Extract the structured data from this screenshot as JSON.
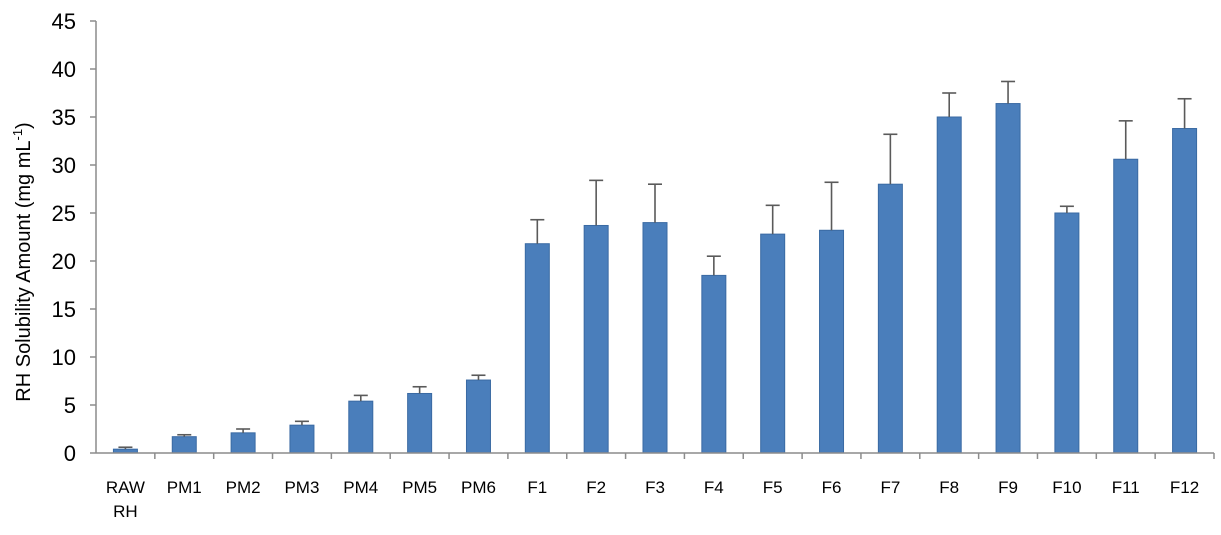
{
  "chart_data": {
    "type": "bar",
    "categories": [
      [
        "RAW",
        "RH"
      ],
      [
        "PM1"
      ],
      [
        "PM2"
      ],
      [
        "PM3"
      ],
      [
        "PM4"
      ],
      [
        "PM5"
      ],
      [
        "PM6"
      ],
      [
        "F1"
      ],
      [
        "F2"
      ],
      [
        "F3"
      ],
      [
        "F4"
      ],
      [
        "F5"
      ],
      [
        "F6"
      ],
      [
        "F7"
      ],
      [
        "F8"
      ],
      [
        "F9"
      ],
      [
        "F10"
      ],
      [
        "F11"
      ],
      [
        "F12"
      ]
    ],
    "values": [
      0.4,
      1.7,
      2.1,
      2.9,
      5.4,
      6.2,
      7.6,
      21.8,
      23.7,
      24.0,
      18.5,
      22.8,
      23.2,
      28.0,
      35.0,
      36.4,
      25.0,
      30.6,
      33.8
    ],
    "errors": [
      0.2,
      0.2,
      0.4,
      0.4,
      0.6,
      0.7,
      0.5,
      2.5,
      4.7,
      4.0,
      2.0,
      3.0,
      5.0,
      5.2,
      2.5,
      2.3,
      0.7,
      4.0,
      3.1
    ],
    "title": "",
    "xlabel": "",
    "ylabel": "RH Solubility Amount (mg mL-1)",
    "ylabel_parts": [
      "RH Solubility Amount (mg mL",
      "-1",
      ")"
    ],
    "ylim": [
      0,
      45
    ],
    "yticks": [
      0,
      5,
      10,
      15,
      20,
      25,
      30,
      35,
      40,
      45
    ],
    "grid": false,
    "legend": "none",
    "bar_color": "#4a7ebb",
    "error_color": "#5a5a5a"
  }
}
